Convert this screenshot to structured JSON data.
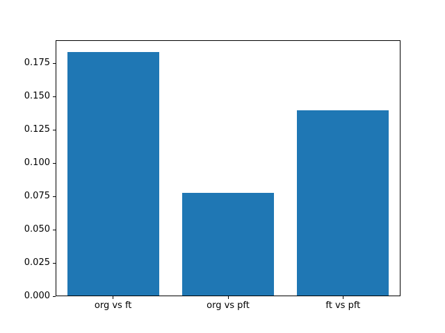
{
  "figure": {
    "background": "#ffffff",
    "spine_color": "#000000",
    "tick_color": "#000000"
  },
  "chart_data": {
    "type": "bar",
    "title": "",
    "xlabel": "",
    "ylabel": "",
    "categories": [
      "org vs ft",
      "org vs pft",
      "ft vs pft"
    ],
    "values": [
      0.1833,
      0.0777,
      0.1397
    ],
    "bar_color": "#1f77b4",
    "ylim": [
      0,
      0.1924
    ],
    "yticks": [
      0.0,
      0.025,
      0.05,
      0.075,
      0.1,
      0.125,
      0.15,
      0.175
    ],
    "ytick_decimals": 3,
    "bar_width_fraction": 0.8,
    "grid": false,
    "legend_position": "none"
  }
}
